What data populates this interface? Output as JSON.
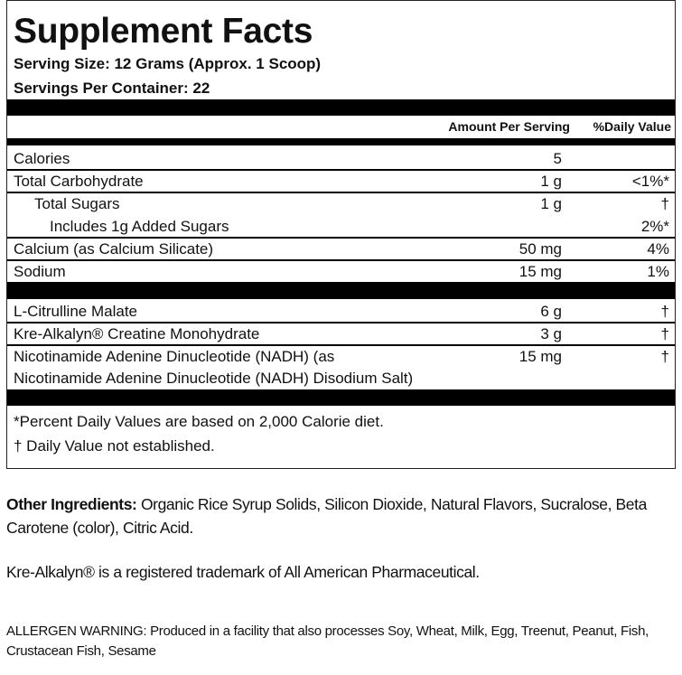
{
  "header": {
    "title": "Supplement Facts",
    "serving_size": "Serving Size: 12 Grams (Approx. 1 Scoop)",
    "servings_per_container": "Servings Per Container: 22"
  },
  "table": {
    "columns": [
      "Amount Per Serving",
      "%Daily Value"
    ],
    "rows": [
      {
        "name": "Calories",
        "amount": "5"
      },
      {
        "name": "Total Carbohydrate",
        "amount": "1 g",
        "dv": "<1%*"
      },
      {
        "name": "Total Sugars",
        "amount": "1 g",
        "dv": "†"
      },
      {
        "name": "Includes 1g Added Sugars",
        "dv": "2%*"
      },
      {
        "name": "Calcium (as Calcium Silicate)",
        "amount": "50 mg",
        "dv": "4%"
      },
      {
        "name": "Sodium",
        "amount": "15 mg",
        "dv": "1%"
      },
      {
        "name": "L-Citrulline Malate",
        "amount": "6 g",
        "dv": "†"
      },
      {
        "name": "Kre-Alkalyn® Creatine Monohydrate",
        "amount": "3 g",
        "dv": "†"
      },
      {
        "name": "Nicotinamide Adenine Dinucleotide (NADH) (as",
        "name_line2": "Nicotinamide Adenine Dinucleotide (NADH) Disodium Salt)",
        "amount": "15 mg",
        "dv": "†"
      }
    ]
  },
  "footnotes": [
    "*Percent Daily Values are based on 2,000 Calorie diet.",
    "† Daily Value not established."
  ],
  "other_ingredients": {
    "label": "Other Ingredients:",
    "text": "Organic Rice Syrup Solids, Silicon Dioxide, Natural Flavors, Sucralose, Beta Carotene (color), Citric Acid."
  },
  "trademark": "Kre-Alkalyn® is a registered trademark of All American Pharmaceutical.",
  "allergen": "ALLERGEN WARNING: Produced in a facility that also processes Soy, Wheat, Milk, Egg, Treenut, Peanut, Fish, Crustacean Fish, Sesame"
}
